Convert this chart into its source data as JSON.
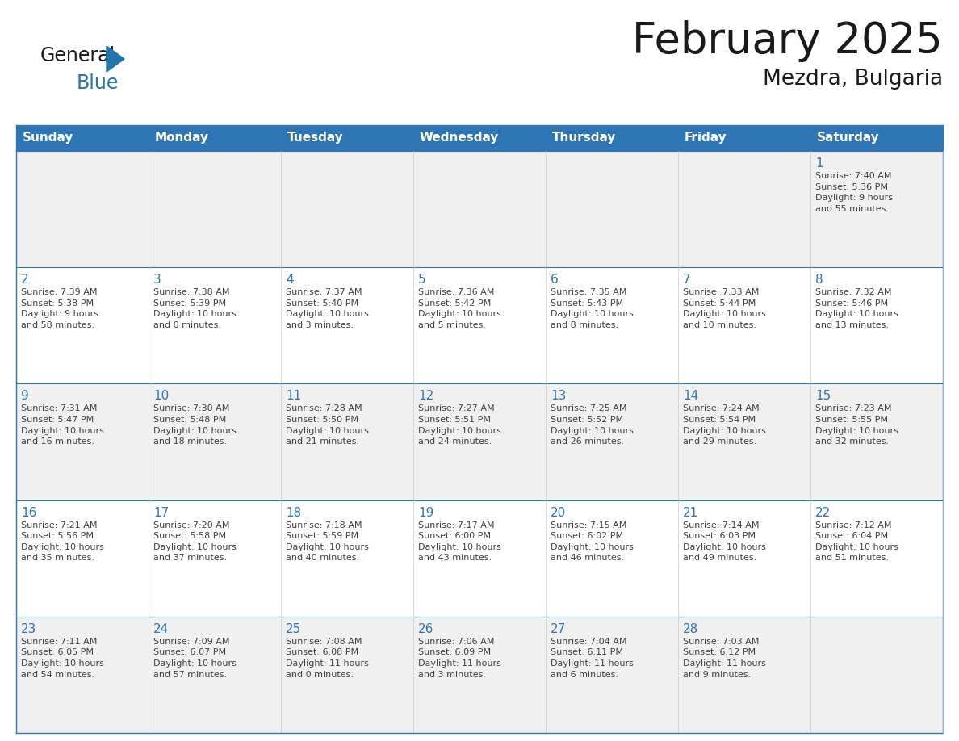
{
  "title": "February 2025",
  "subtitle": "Mezdra, Bulgaria",
  "header_bg": "#2E75B6",
  "header_text_color": "#FFFFFF",
  "cell_bg_white": "#FFFFFF",
  "cell_bg_gray": "#F0F0F0",
  "border_color": "#2E75B6",
  "day_headers": [
    "Sunday",
    "Monday",
    "Tuesday",
    "Wednesday",
    "Thursday",
    "Friday",
    "Saturday"
  ],
  "title_color": "#1a1a1a",
  "subtitle_color": "#1a1a1a",
  "day_number_color": "#2E75B6",
  "cell_text_color": "#404040",
  "logo_general_color": "#1a1a1a",
  "logo_blue_color": "#2176AE",
  "weeks": [
    [
      {
        "day": null,
        "text": ""
      },
      {
        "day": null,
        "text": ""
      },
      {
        "day": null,
        "text": ""
      },
      {
        "day": null,
        "text": ""
      },
      {
        "day": null,
        "text": ""
      },
      {
        "day": null,
        "text": ""
      },
      {
        "day": 1,
        "text": "Sunrise: 7:40 AM\nSunset: 5:36 PM\nDaylight: 9 hours\nand 55 minutes."
      }
    ],
    [
      {
        "day": 2,
        "text": "Sunrise: 7:39 AM\nSunset: 5:38 PM\nDaylight: 9 hours\nand 58 minutes."
      },
      {
        "day": 3,
        "text": "Sunrise: 7:38 AM\nSunset: 5:39 PM\nDaylight: 10 hours\nand 0 minutes."
      },
      {
        "day": 4,
        "text": "Sunrise: 7:37 AM\nSunset: 5:40 PM\nDaylight: 10 hours\nand 3 minutes."
      },
      {
        "day": 5,
        "text": "Sunrise: 7:36 AM\nSunset: 5:42 PM\nDaylight: 10 hours\nand 5 minutes."
      },
      {
        "day": 6,
        "text": "Sunrise: 7:35 AM\nSunset: 5:43 PM\nDaylight: 10 hours\nand 8 minutes."
      },
      {
        "day": 7,
        "text": "Sunrise: 7:33 AM\nSunset: 5:44 PM\nDaylight: 10 hours\nand 10 minutes."
      },
      {
        "day": 8,
        "text": "Sunrise: 7:32 AM\nSunset: 5:46 PM\nDaylight: 10 hours\nand 13 minutes."
      }
    ],
    [
      {
        "day": 9,
        "text": "Sunrise: 7:31 AM\nSunset: 5:47 PM\nDaylight: 10 hours\nand 16 minutes."
      },
      {
        "day": 10,
        "text": "Sunrise: 7:30 AM\nSunset: 5:48 PM\nDaylight: 10 hours\nand 18 minutes."
      },
      {
        "day": 11,
        "text": "Sunrise: 7:28 AM\nSunset: 5:50 PM\nDaylight: 10 hours\nand 21 minutes."
      },
      {
        "day": 12,
        "text": "Sunrise: 7:27 AM\nSunset: 5:51 PM\nDaylight: 10 hours\nand 24 minutes."
      },
      {
        "day": 13,
        "text": "Sunrise: 7:25 AM\nSunset: 5:52 PM\nDaylight: 10 hours\nand 26 minutes."
      },
      {
        "day": 14,
        "text": "Sunrise: 7:24 AM\nSunset: 5:54 PM\nDaylight: 10 hours\nand 29 minutes."
      },
      {
        "day": 15,
        "text": "Sunrise: 7:23 AM\nSunset: 5:55 PM\nDaylight: 10 hours\nand 32 minutes."
      }
    ],
    [
      {
        "day": 16,
        "text": "Sunrise: 7:21 AM\nSunset: 5:56 PM\nDaylight: 10 hours\nand 35 minutes."
      },
      {
        "day": 17,
        "text": "Sunrise: 7:20 AM\nSunset: 5:58 PM\nDaylight: 10 hours\nand 37 minutes."
      },
      {
        "day": 18,
        "text": "Sunrise: 7:18 AM\nSunset: 5:59 PM\nDaylight: 10 hours\nand 40 minutes."
      },
      {
        "day": 19,
        "text": "Sunrise: 7:17 AM\nSunset: 6:00 PM\nDaylight: 10 hours\nand 43 minutes."
      },
      {
        "day": 20,
        "text": "Sunrise: 7:15 AM\nSunset: 6:02 PM\nDaylight: 10 hours\nand 46 minutes."
      },
      {
        "day": 21,
        "text": "Sunrise: 7:14 AM\nSunset: 6:03 PM\nDaylight: 10 hours\nand 49 minutes."
      },
      {
        "day": 22,
        "text": "Sunrise: 7:12 AM\nSunset: 6:04 PM\nDaylight: 10 hours\nand 51 minutes."
      }
    ],
    [
      {
        "day": 23,
        "text": "Sunrise: 7:11 AM\nSunset: 6:05 PM\nDaylight: 10 hours\nand 54 minutes."
      },
      {
        "day": 24,
        "text": "Sunrise: 7:09 AM\nSunset: 6:07 PM\nDaylight: 10 hours\nand 57 minutes."
      },
      {
        "day": 25,
        "text": "Sunrise: 7:08 AM\nSunset: 6:08 PM\nDaylight: 11 hours\nand 0 minutes."
      },
      {
        "day": 26,
        "text": "Sunrise: 7:06 AM\nSunset: 6:09 PM\nDaylight: 11 hours\nand 3 minutes."
      },
      {
        "day": 27,
        "text": "Sunrise: 7:04 AM\nSunset: 6:11 PM\nDaylight: 11 hours\nand 6 minutes."
      },
      {
        "day": 28,
        "text": "Sunrise: 7:03 AM\nSunset: 6:12 PM\nDaylight: 11 hours\nand 9 minutes."
      },
      {
        "day": null,
        "text": ""
      }
    ]
  ],
  "row_bg": [
    "#F0F0F0",
    "#FFFFFF",
    "#F0F0F0",
    "#FFFFFF",
    "#F0F0F0"
  ]
}
